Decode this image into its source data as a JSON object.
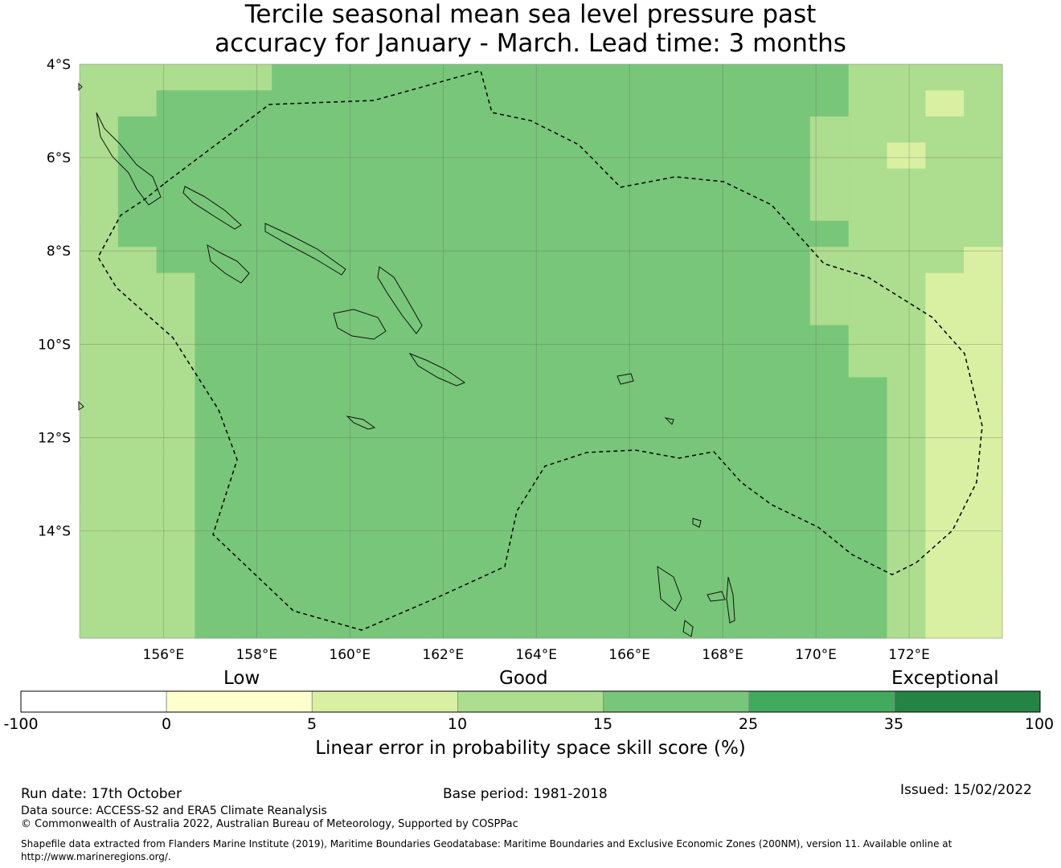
{
  "title": {
    "line1": "Tercile seasonal mean sea level pressure past",
    "line2": "accuracy for January - March. Lead time: 3 months"
  },
  "map": {
    "lat_labels": [
      "4°S",
      "6°S",
      "8°S",
      "10°S",
      "12°S",
      "14°S"
    ],
    "lon_labels": [
      "156°E",
      "158°E",
      "160°E",
      "162°E",
      "164°E",
      "166°E",
      "168°E",
      "170°E",
      "172°E"
    ],
    "grid": {
      "lon_range": [
        154.2,
        174.0
      ],
      "lat_range": [
        -16.3,
        -4.0
      ],
      "columns": 24,
      "rows": 22,
      "note": "each row string lists the colour class per grid cell, west to east, north to south (0..6)",
      "cells": [
        "333334444444444444443333",
        "334444444444444444443323",
        "344444444444444444433333",
        "344444444444444444433233",
        "344444444444444444433333",
        "344444444444444444433333",
        "344444444444444444443333",
        "334444444444444444433332",
        "333444444444444444433322",
        "333444444444444444433322",
        "333444444444444444443322",
        "333444444444444444443322",
        "333444444444444444444322",
        "333444444444444444444322",
        "333444444444444444444322",
        "333444444444444444444322",
        "333444444444444444444322",
        "333444444444444444444322",
        "333444444444444444444322",
        "333444444444444444444322",
        "333444444444444444444322",
        "333444444444444444444322"
      ]
    }
  },
  "colorbar": {
    "low_label": "Low",
    "good_label": "Good",
    "exceptional_label": "Exceptional",
    "ticks": [
      "-100",
      "0",
      "5",
      "10",
      "15",
      "25",
      "35",
      "100"
    ],
    "colors": [
      "#ffffff",
      "#ffffcc",
      "#d9f0a3",
      "#addd8e",
      "#78c679",
      "#41ab5d",
      "#238443"
    ],
    "title": "Linear error in probability space skill score (%)"
  },
  "footer": {
    "run_date": "Run date: 17th October",
    "base_period": "Base period: 1981-2018",
    "issued": "Issued: 15/02/2022",
    "data_source": "Data source: ACCESS-S2 and ERA5 Climate Reanalysis",
    "copyright": "© Commonwealth of Australia 2022, Australian Bureau of Meteorology, Supported by COSPPac",
    "shapefile": "Shapefile data extracted from Flanders Marine Institute (2019), Maritime Boundaries Geodatabase: Maritime Boundaries and Exclusive Economic Zones (200NM), version 11. Available online at http://www.marineregions.org/."
  }
}
